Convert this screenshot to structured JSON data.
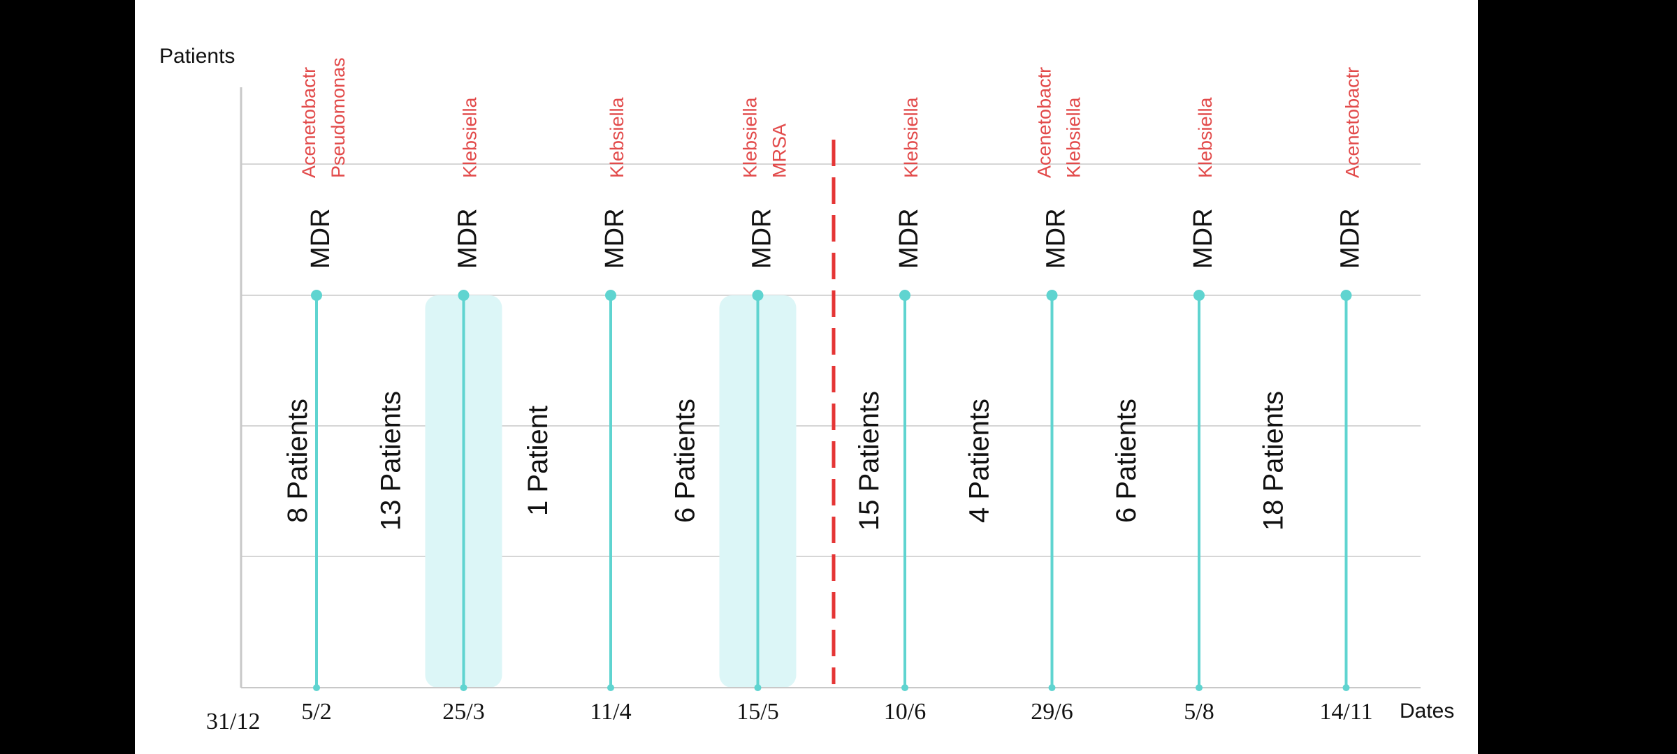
{
  "chart_data": {
    "type": "timeline",
    "ylabel": "Patients",
    "xlabel": "Dates",
    "origin_label": "31/12",
    "stem_label": "MDR",
    "events": [
      {
        "date": "5/2",
        "organisms": [
          "Acenetobactr",
          "Pseudomonas"
        ],
        "patients_before": "8 Patients",
        "highlight": false
      },
      {
        "date": "25/3",
        "organisms": [
          "Klebsiella"
        ],
        "patients_before": "13 Patients",
        "highlight": true
      },
      {
        "date": "11/4",
        "organisms": [
          "Klebsiella"
        ],
        "patients_before": "1 Patient",
        "highlight": false
      },
      {
        "date": "15/5",
        "organisms": [
          "Klebsiella",
          "MRSA"
        ],
        "patients_before": "6 Patients",
        "highlight": true
      },
      {
        "date": "10/6",
        "organisms": [
          "Klebsiella"
        ],
        "patients_before": "15 Patients",
        "highlight": false
      },
      {
        "date": "29/6",
        "organisms": [
          "Acenetobactr",
          "Klebsiella"
        ],
        "patients_before": "4 Patients",
        "highlight": false
      },
      {
        "date": "5/8",
        "organisms": [
          "Klebsiella"
        ],
        "patients_before": "6 Patients",
        "highlight": false
      },
      {
        "date": "14/11",
        "organisms": [
          "Acenetobactr"
        ],
        "patients_before": "18 Patients",
        "highlight": false
      }
    ],
    "after_last_patients": "",
    "divider_between": [
      "15/5",
      "10/6"
    ],
    "grid": true,
    "colors": {
      "stem": "#5fd4d0",
      "highlight": "#dcf6f7",
      "organism": "#e24a4a",
      "divider": "#e53535",
      "grid": "#d6d6d6",
      "axis": "#c8c8c8",
      "text": "#111111"
    }
  }
}
